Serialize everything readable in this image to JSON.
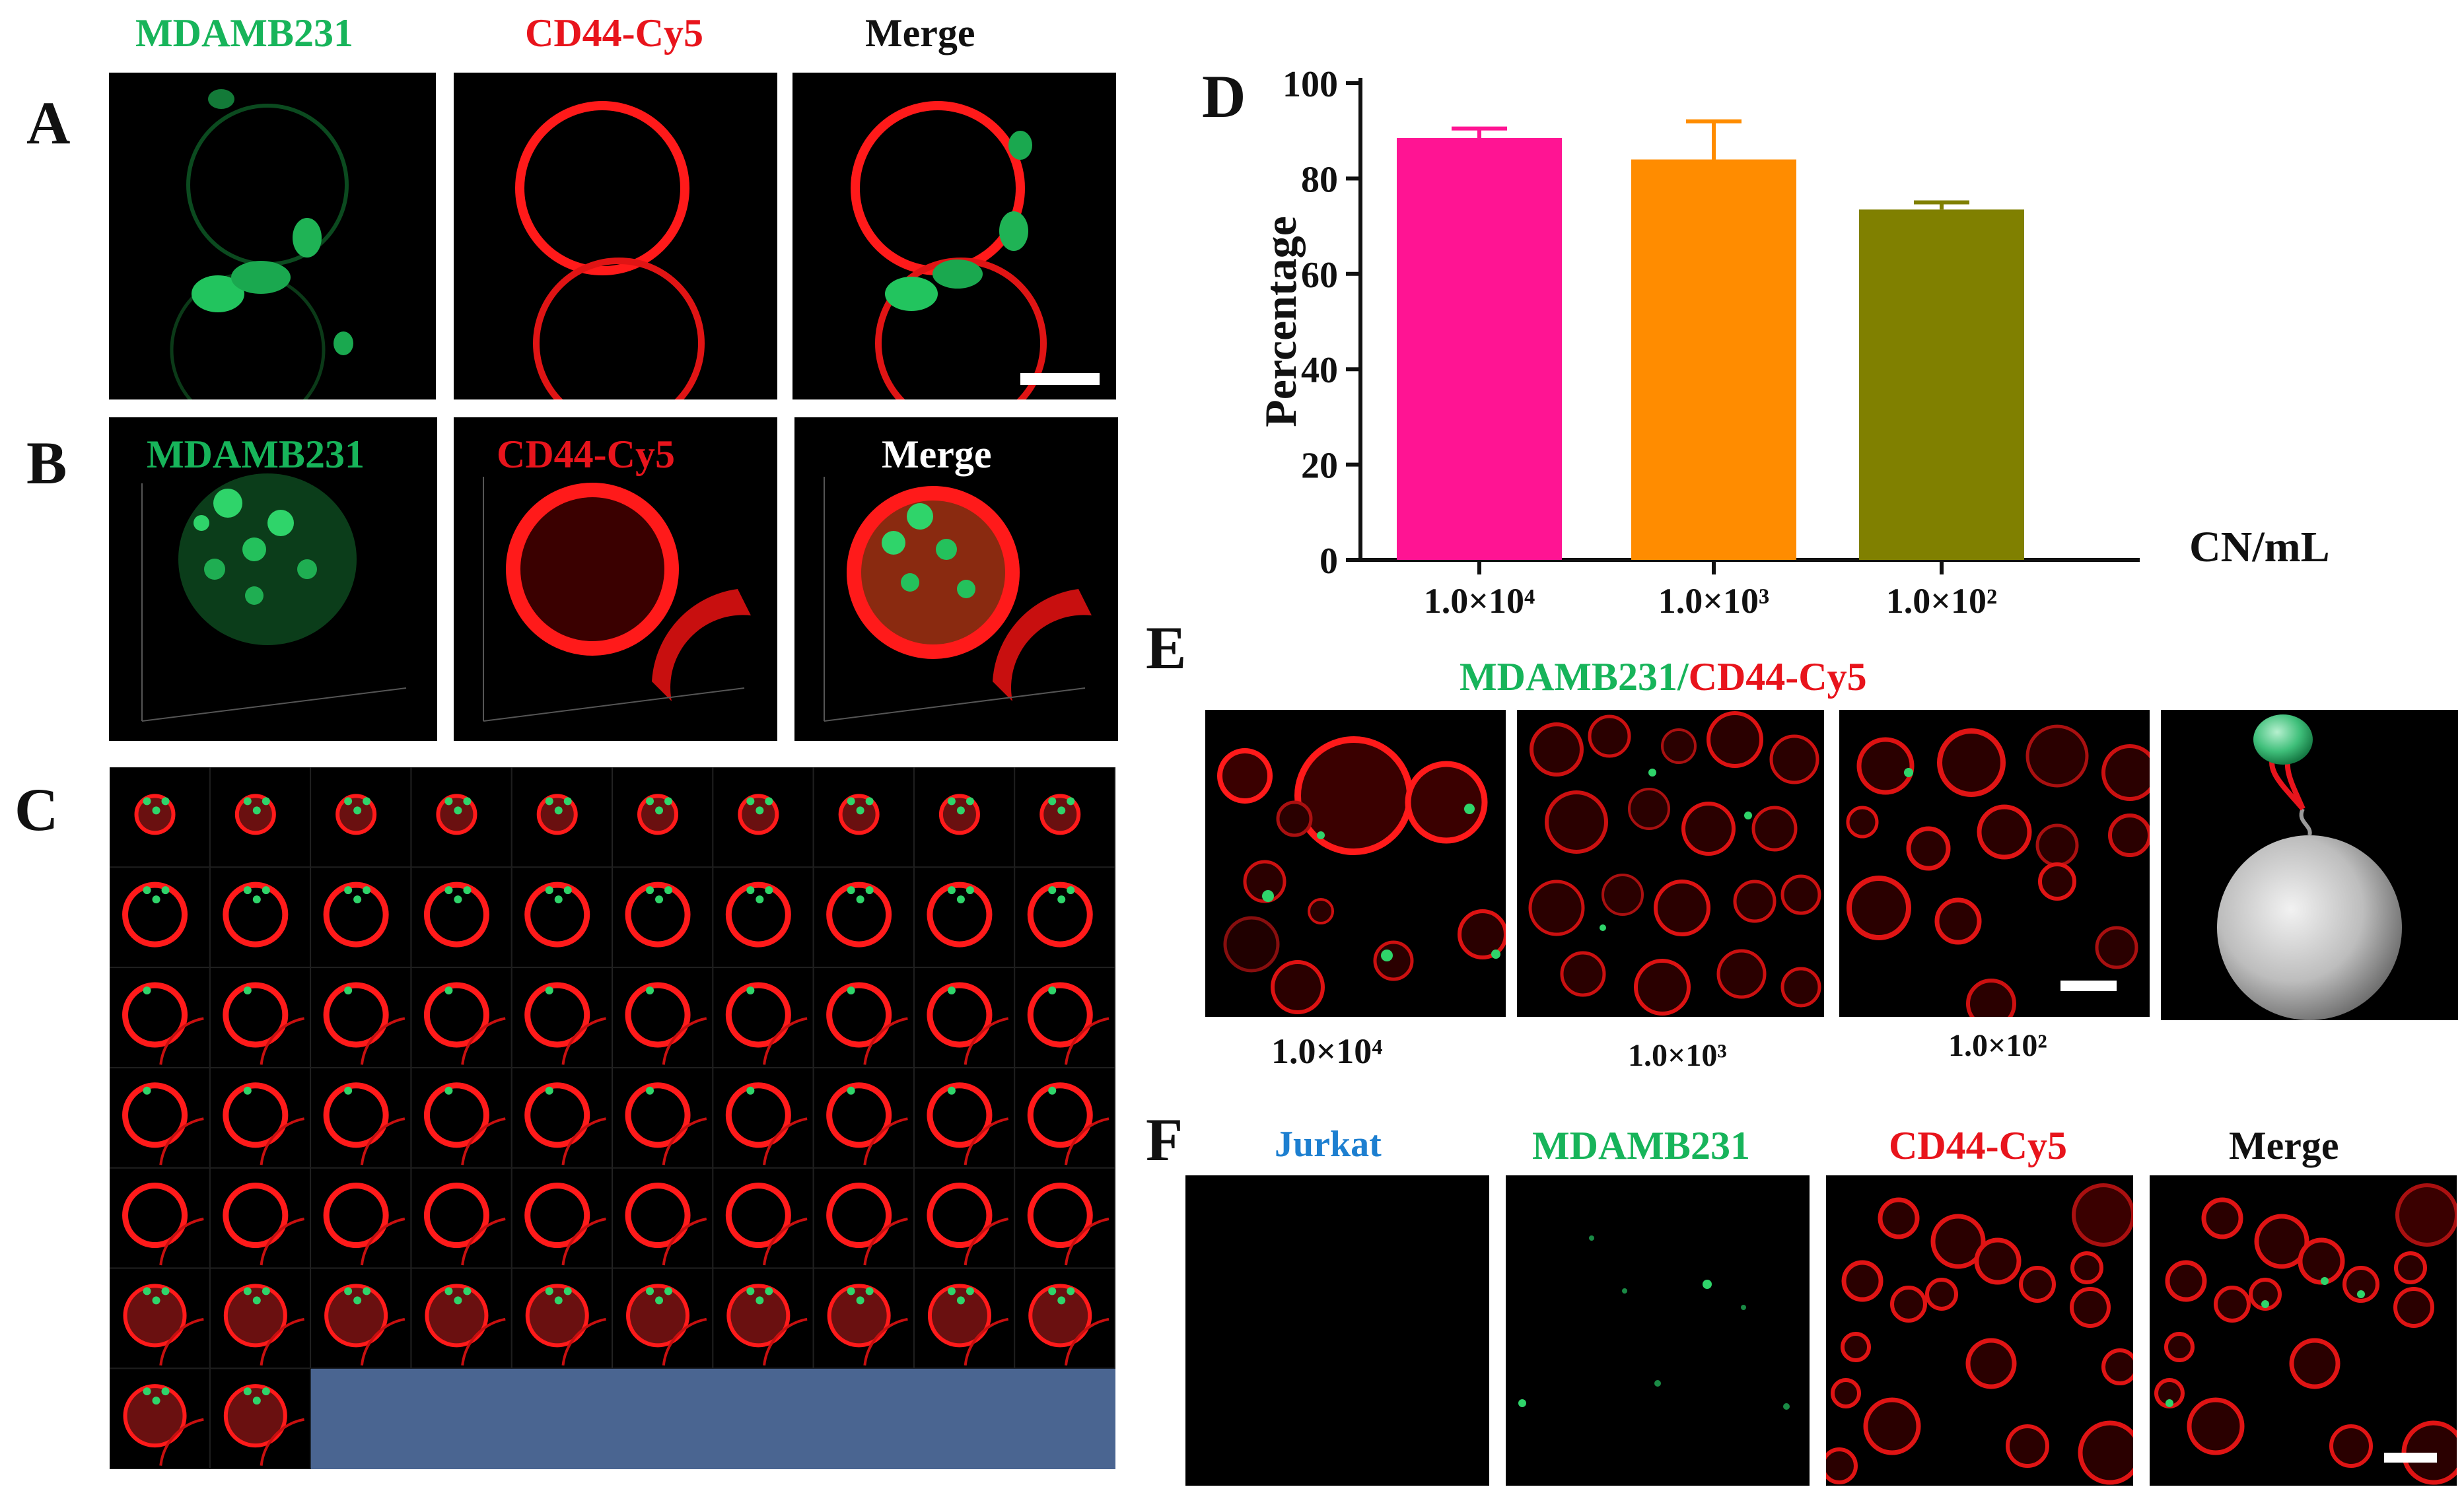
{
  "panels": {
    "A": {
      "letter": "A",
      "headers": [
        "MDAMB231",
        "CD44-Cy5",
        "Merge"
      ]
    },
    "B": {
      "letter": "B",
      "headers": [
        "MDAMB231",
        "CD44-Cy5",
        "Merge"
      ]
    },
    "C": {
      "letter": "C"
    },
    "D": {
      "letter": "D"
    },
    "E": {
      "letter": "E",
      "title_green": "MDAMB231/",
      "title_red": "CD44-Cy5",
      "labels": [
        "1.0×10⁴",
        "1.0×10³",
        "1.0×10²"
      ]
    },
    "F": {
      "letter": "F",
      "headers": [
        "Jurkat",
        "MDAMB231",
        "CD44-Cy5",
        "Merge"
      ]
    }
  },
  "colors": {
    "green": "#17b45a",
    "red": "#e8141c",
    "blue": "#1d7fd0",
    "bar1": "#ff1493",
    "bar2": "#ff8c00",
    "bar3": "#808000",
    "fill_block": "#4a6591"
  },
  "chart_data": {
    "type": "bar",
    "categories": [
      "1.0×10⁴",
      "1.0×10³",
      "1.0×10²"
    ],
    "values": [
      88.5,
      84,
      73.5
    ],
    "errors": [
      2,
      8,
      1.5
    ],
    "ylabel": "Percentage",
    "xlabel": "CN/mL",
    "ylim": [
      0,
      100
    ],
    "yticks": [
      0,
      20,
      40,
      60,
      80,
      100
    ],
    "bar_colors": [
      "#ff1493",
      "#ff8c00",
      "#808000"
    ]
  }
}
